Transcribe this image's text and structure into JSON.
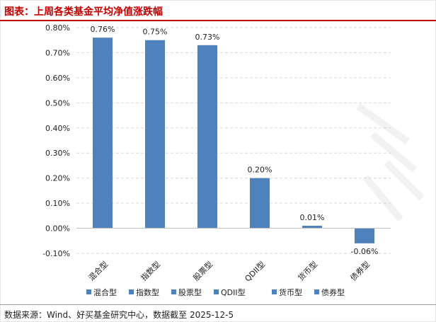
{
  "header": {
    "title": "图表：上周各类基金平均净值涨跌幅"
  },
  "footer": {
    "source": "数据来源：Wind、好买基金研究中心，数据截至 2025-12-5"
  },
  "colors": {
    "bar": "#4f81bd",
    "title": "#c00000",
    "grid": "#d9d9d9"
  },
  "chart_data": {
    "type": "bar",
    "title": "",
    "xlabel": "",
    "ylabel": "",
    "categories": [
      "混合型",
      "指数型",
      "股票型",
      "QDII型",
      "货币型",
      "债券型"
    ],
    "values": [
      0.76,
      0.75,
      0.73,
      0.2,
      0.01,
      -0.06
    ],
    "value_labels": [
      "0.76%",
      "0.75%",
      "0.73%",
      "0.20%",
      "0.01%",
      "-0.06%"
    ],
    "ylim": [
      -0.1,
      0.8
    ],
    "yticks": [
      -0.1,
      0.0,
      0.1,
      0.2,
      0.3,
      0.4,
      0.5,
      0.6,
      0.7,
      0.8
    ],
    "ytick_labels": [
      "-0.10%",
      "0.00%",
      "0.10%",
      "0.20%",
      "0.30%",
      "0.40%",
      "0.50%",
      "0.60%",
      "0.70%",
      "0.80%"
    ],
    "grid": true,
    "legend": {
      "position": "bottom",
      "entries": [
        "混合型",
        "指数型",
        "股票型",
        "QDII型",
        "货币型",
        "债券型"
      ]
    }
  }
}
